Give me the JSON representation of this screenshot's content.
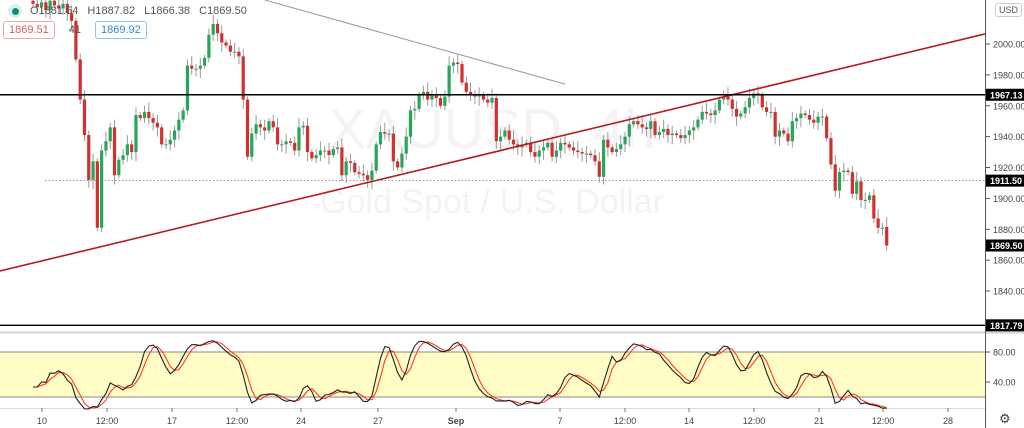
{
  "symbol_watermark": "XAUUSD, 4h",
  "symbol_description": "Gold Spot / U.S. Dollar",
  "legend": {
    "open": "O1881.54",
    "high": "H1887.82",
    "low": "L1866.38",
    "close": "C1869.50"
  },
  "quotes": {
    "sell": "1869.51",
    "spread": "41",
    "buy": "1869.92"
  },
  "currency_button": "USD",
  "colors": {
    "up": "#26a65b",
    "down": "#d32f2f",
    "trendline": "#b71c1c",
    "level": "#000000",
    "stoch_k": "#222222",
    "stoch_d": "#ff3b1f",
    "band": "#fffcc6"
  },
  "chart_data": [
    {
      "type": "candlestick",
      "title": "XAUUSD, 4h",
      "ylim": [
        1812,
        2028
      ],
      "ytick_labels": [
        "2000.00",
        "1980.00",
        "1960.00",
        "1940.00",
        "1920.00",
        "1900.00",
        "1880.00",
        "1860.00",
        "1840.00"
      ],
      "yticks": [
        2000,
        1980,
        1960,
        1940,
        1920,
        1900,
        1880,
        1860,
        1840
      ],
      "xtick_labels": [
        "10",
        "12:00",
        "17",
        "12:00",
        "24",
        "27",
        "Sep",
        "7",
        "12:00",
        "14",
        "12:00",
        "21",
        "12:00",
        "28"
      ],
      "closes": [
        2026,
        2024,
        2027,
        2022,
        2028,
        2025,
        2023,
        2026,
        2020,
        2015,
        1990,
        1964,
        1941,
        1912,
        1924,
        1881,
        1931,
        1937,
        1946,
        1915,
        1925,
        1928,
        1935,
        1930,
        1954,
        1952,
        1956,
        1952,
        1949,
        1946,
        1935,
        1935,
        1938,
        1944,
        1951,
        1957,
        1986,
        1984,
        1984,
        1986,
        1991,
        2006,
        2013,
        2007,
        2001,
        1999,
        1995,
        1995,
        1992,
        1964,
        1927,
        1942,
        1948,
        1946,
        1944,
        1950,
        1946,
        1935,
        1935,
        1937,
        1936,
        1931,
        1946,
        1947,
        1930,
        1926,
        1928,
        1931,
        1931,
        1928,
        1932,
        1933,
        1915,
        1924,
        1923,
        1917,
        1916,
        1915,
        1912,
        1918,
        1935,
        1943,
        1942,
        1942,
        1924,
        1920,
        1929,
        1940,
        1957,
        1958,
        1967,
        1969,
        1964,
        1967,
        1965,
        1960,
        1966,
        1986,
        1988,
        1987,
        1975,
        1969,
        1967,
        1966,
        1967,
        1964,
        1962,
        1965,
        1937,
        1940,
        1944,
        1938,
        1935,
        1933,
        1935,
        1936,
        1930,
        1927,
        1931,
        1933,
        1936,
        1927,
        1931,
        1936,
        1935,
        1933,
        1931,
        1930,
        1929,
        1929,
        1928,
        1924,
        1914,
        1938,
        1933,
        1930,
        1932,
        1935,
        1940,
        1948,
        1950,
        1948,
        1946,
        1945,
        1950,
        1941,
        1943,
        1945,
        1941,
        1942,
        1941,
        1939,
        1941,
        1944,
        1946,
        1951,
        1956,
        1955,
        1954,
        1957,
        1964,
        1966,
        1964,
        1958,
        1953,
        1955,
        1959,
        1965,
        1968,
        1967,
        1959,
        1956,
        1956,
        1940,
        1944,
        1942,
        1937,
        1950,
        1952,
        1955,
        1954,
        1951,
        1949,
        1953,
        1953,
        1939,
        1922,
        1905,
        1917,
        1918,
        1917,
        1903,
        1911,
        1899,
        1899,
        1902,
        1887,
        1881,
        1881,
        1869.5
      ],
      "last_candle": {
        "open": 1881.54,
        "high": 1887.82,
        "low": 1866.38,
        "close": 1869.5
      },
      "horizontal_levels": [
        {
          "price": 1967.13,
          "label": "1967.13",
          "style": "solid"
        },
        {
          "price": 1911.5,
          "label": "1911.50",
          "style": "dotted"
        },
        {
          "price": 1869.5,
          "label": "1869.50",
          "style": "last-price"
        },
        {
          "price": 1817.79,
          "label": "1817.79",
          "style": "solid"
        }
      ],
      "trendlines": [
        {
          "name": "support",
          "from_price": 1853,
          "to_price": 2006.5,
          "color": "#b71c1c"
        },
        {
          "name": "resistance",
          "from_price": 2028.5,
          "to_price": 1974,
          "color": "#999999"
        }
      ]
    },
    {
      "type": "line",
      "indicator": "stochastic",
      "ylim": [
        0,
        100
      ],
      "yticks": [
        80,
        40
      ],
      "ytick_labels": [
        "80.00",
        "40.00"
      ],
      "band": [
        20,
        80
      ]
    }
  ]
}
